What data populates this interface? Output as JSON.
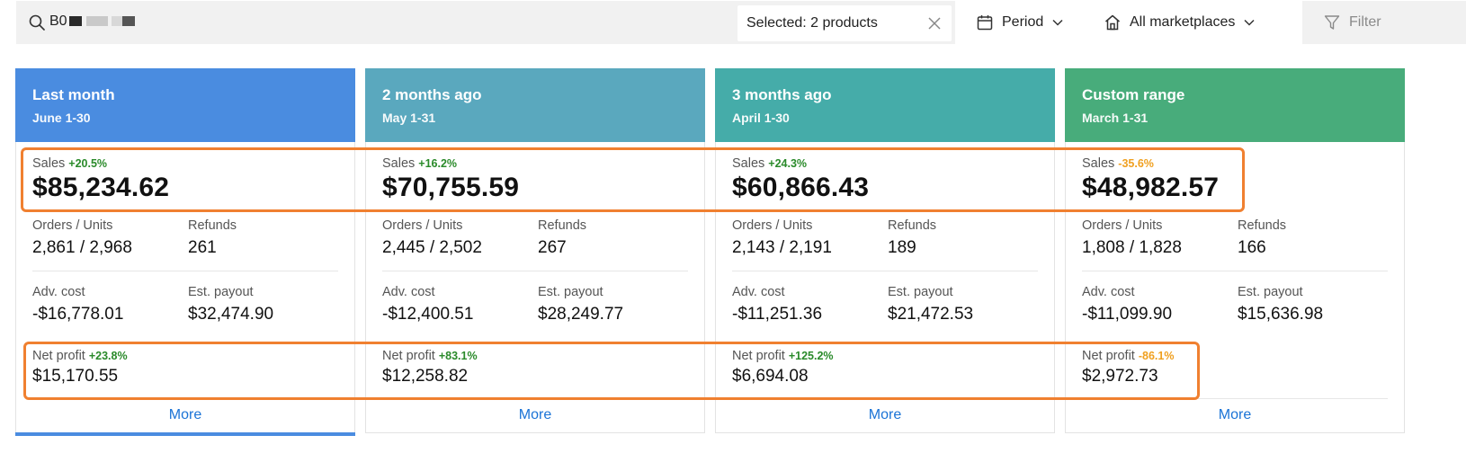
{
  "toolbar": {
    "search_value": "B0",
    "selected_label": "Selected: 2 products",
    "period_label": "Period",
    "marketplace_label": "All marketplaces",
    "filter_label": "Filter"
  },
  "labels": {
    "sales": "Sales",
    "orders_units": "Orders / Units",
    "refunds": "Refunds",
    "adv_cost": "Adv. cost",
    "est_payout": "Est. payout",
    "net_profit": "Net profit",
    "more": "More"
  },
  "colors": {
    "card_headers": [
      "#4a8ce0",
      "#5aa8be",
      "#45aca9",
      "#48ac7b"
    ],
    "positive_change": "#2a8a2a",
    "negative_change": "#f0a020",
    "highlight": "#f08030",
    "link": "#1a73d6"
  },
  "cards": [
    {
      "title": "Last month",
      "subtitle": "June 1-30",
      "sales_change": "+20.5%",
      "sales": "$85,234.62",
      "orders_units": "2,861 / 2,968",
      "refunds": "261",
      "adv_cost": "-$16,778.01",
      "est_payout": "$32,474.90",
      "net_profit_change": "+23.8%",
      "net_profit": "$15,170.55"
    },
    {
      "title": "2 months ago",
      "subtitle": "May 1-31",
      "sales_change": "+16.2%",
      "sales": "$70,755.59",
      "orders_units": "2,445 / 2,502",
      "refunds": "267",
      "adv_cost": "-$12,400.51",
      "est_payout": "$28,249.77",
      "net_profit_change": "+83.1%",
      "net_profit": "$12,258.82"
    },
    {
      "title": "3 months ago",
      "subtitle": "April 1-30",
      "sales_change": "+24.3%",
      "sales": "$60,866.43",
      "orders_units": "2,143 / 2,191",
      "refunds": "189",
      "adv_cost": "-$11,251.36",
      "est_payout": "$21,472.53",
      "net_profit_change": "+125.2%",
      "net_profit": "$6,694.08"
    },
    {
      "title": "Custom range",
      "subtitle": "March 1-31",
      "sales_change": "-35.6%",
      "sales": "$48,982.57",
      "orders_units": "1,808 / 1,828",
      "refunds": "166",
      "adv_cost": "-$11,099.90",
      "est_payout": "$15,636.98",
      "net_profit_change": "-86.1%",
      "net_profit": "$2,972.73"
    }
  ]
}
